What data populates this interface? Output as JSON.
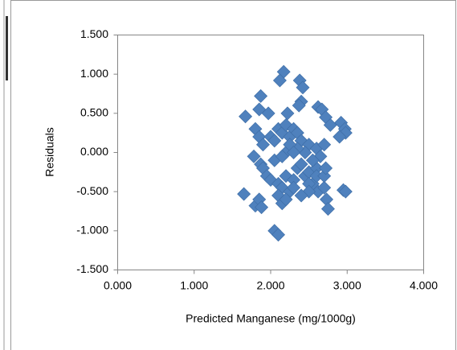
{
  "chart_data": {
    "type": "scatter",
    "x_label": "Predicted Manganese (mg/1000g)",
    "y_label": "Residuals",
    "color": "#4f81bd",
    "xlim": [
      0,
      4
    ],
    "xticks": [
      {
        "value": 0,
        "label": "0.000"
      },
      {
        "value": 1,
        "label": "1.000"
      },
      {
        "value": 2,
        "label": "2.000"
      },
      {
        "value": 3,
        "label": "3.000"
      },
      {
        "value": 4,
        "label": "4.000"
      }
    ],
    "ylim": [
      -1.5,
      1.5
    ],
    "yticks": [
      {
        "value": -1.5,
        "label": "-1.500"
      },
      {
        "value": -1,
        "label": "-1.000"
      },
      {
        "value": -0.5,
        "label": "-0.500"
      },
      {
        "value": 0,
        "label": "0.000"
      },
      {
        "value": 0.5,
        "label": "0.500"
      },
      {
        "value": 1,
        "label": "1.000"
      },
      {
        "value": 1.5,
        "label": "1.500"
      }
    ],
    "x": [
      1.67,
      2.17,
      2.12,
      2.38,
      2.42,
      1.87,
      2.22,
      1.85,
      1.97,
      2.4,
      2.37,
      2.62,
      2.67,
      2.72,
      2.78,
      2.92,
      2.97,
      2.98,
      2.9,
      1.8,
      1.85,
      1.9,
      2.0,
      2.05,
      2.1,
      2.15,
      2.2,
      2.25,
      2.3,
      2.35,
      2.4,
      2.5,
      2.6,
      2.7,
      2.65,
      1.78,
      1.87,
      1.9,
      1.95,
      2.0,
      2.05,
      2.1,
      2.15,
      2.2,
      2.25,
      2.3,
      2.35,
      2.4,
      2.45,
      2.5,
      2.55,
      2.6,
      2.62,
      2.7,
      2.73,
      2.75,
      2.95,
      2.98,
      1.65,
      1.8,
      1.85,
      1.88,
      2.05,
      2.1,
      2.1,
      2.15,
      2.2,
      2.3,
      2.5,
      2.55,
      2.6,
      2.45,
      2.35,
      2.2,
      2.15,
      2.25,
      2.3,
      2.7,
      2.72,
      2.5,
      2.4
    ],
    "values": [
      0.46,
      1.03,
      0.92,
      0.92,
      0.83,
      0.72,
      0.5,
      0.55,
      0.5,
      0.65,
      0.6,
      0.58,
      0.55,
      0.45,
      0.35,
      0.38,
      0.3,
      0.25,
      0.2,
      0.3,
      0.2,
      0.1,
      0.2,
      0.15,
      0.3,
      0.25,
      0.35,
      0.2,
      0.3,
      0.25,
      0.15,
      0.1,
      0.05,
      0.1,
      -0.05,
      -0.05,
      -0.15,
      -0.2,
      -0.3,
      -0.35,
      -0.1,
      -0.4,
      -0.45,
      -0.3,
      -0.5,
      -0.35,
      -0.2,
      -0.15,
      -0.3,
      -0.25,
      -0.4,
      -0.2,
      -0.5,
      -0.45,
      -0.6,
      -0.72,
      -0.48,
      -0.5,
      -0.53,
      -0.68,
      -0.6,
      -0.7,
      -1.0,
      -1.05,
      -0.55,
      -0.65,
      -0.6,
      -0.45,
      -0.4,
      -0.1,
      -0.3,
      0.0,
      0.05,
      0.0,
      -0.05,
      0.1,
      0.0,
      -0.3,
      -0.2,
      -0.5,
      -0.55
    ]
  }
}
